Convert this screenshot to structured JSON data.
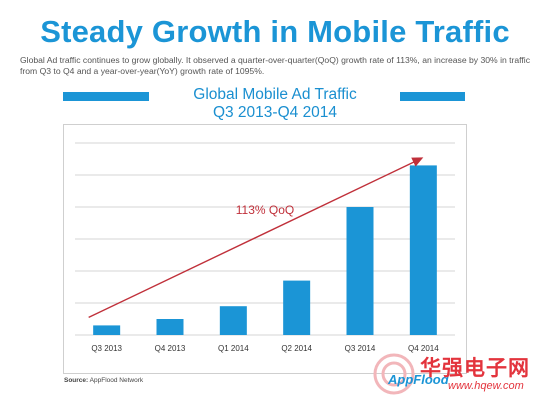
{
  "header": {
    "title": "Steady Growth in Mobile Traffic",
    "description": "Global Ad traffic continues to grow globally. It observed a quarter-over-quarter(QoQ) growth rate of 113%, an increase by 30% in traffic from Q3 to Q4 and a year-over-year(YoY) growth rate of 1095%."
  },
  "chart_data": {
    "type": "bar",
    "title": "Global Mobile Ad Traffic",
    "subtitle": "Q3 2013-Q4 2014",
    "categories": [
      "Q3 2013",
      "Q4 2013",
      "Q1 2014",
      "Q2 2014",
      "Q3 2014",
      "Q4 2014"
    ],
    "values": [
      0.3,
      0.5,
      0.9,
      1.7,
      4.0,
      5.3
    ],
    "ylim": [
      0,
      6
    ],
    "grid": true,
    "bar_color": "#1b95d6",
    "annotation": {
      "text": "113% QoQ",
      "color": "#c0303a"
    }
  },
  "footer": {
    "source_label": "Source:",
    "source_name": "AppFlood Network",
    "brand": "AppFlood"
  },
  "watermark": {
    "text": "华强电子网",
    "url": "www.hqew.com",
    "color": "#e3343d"
  }
}
